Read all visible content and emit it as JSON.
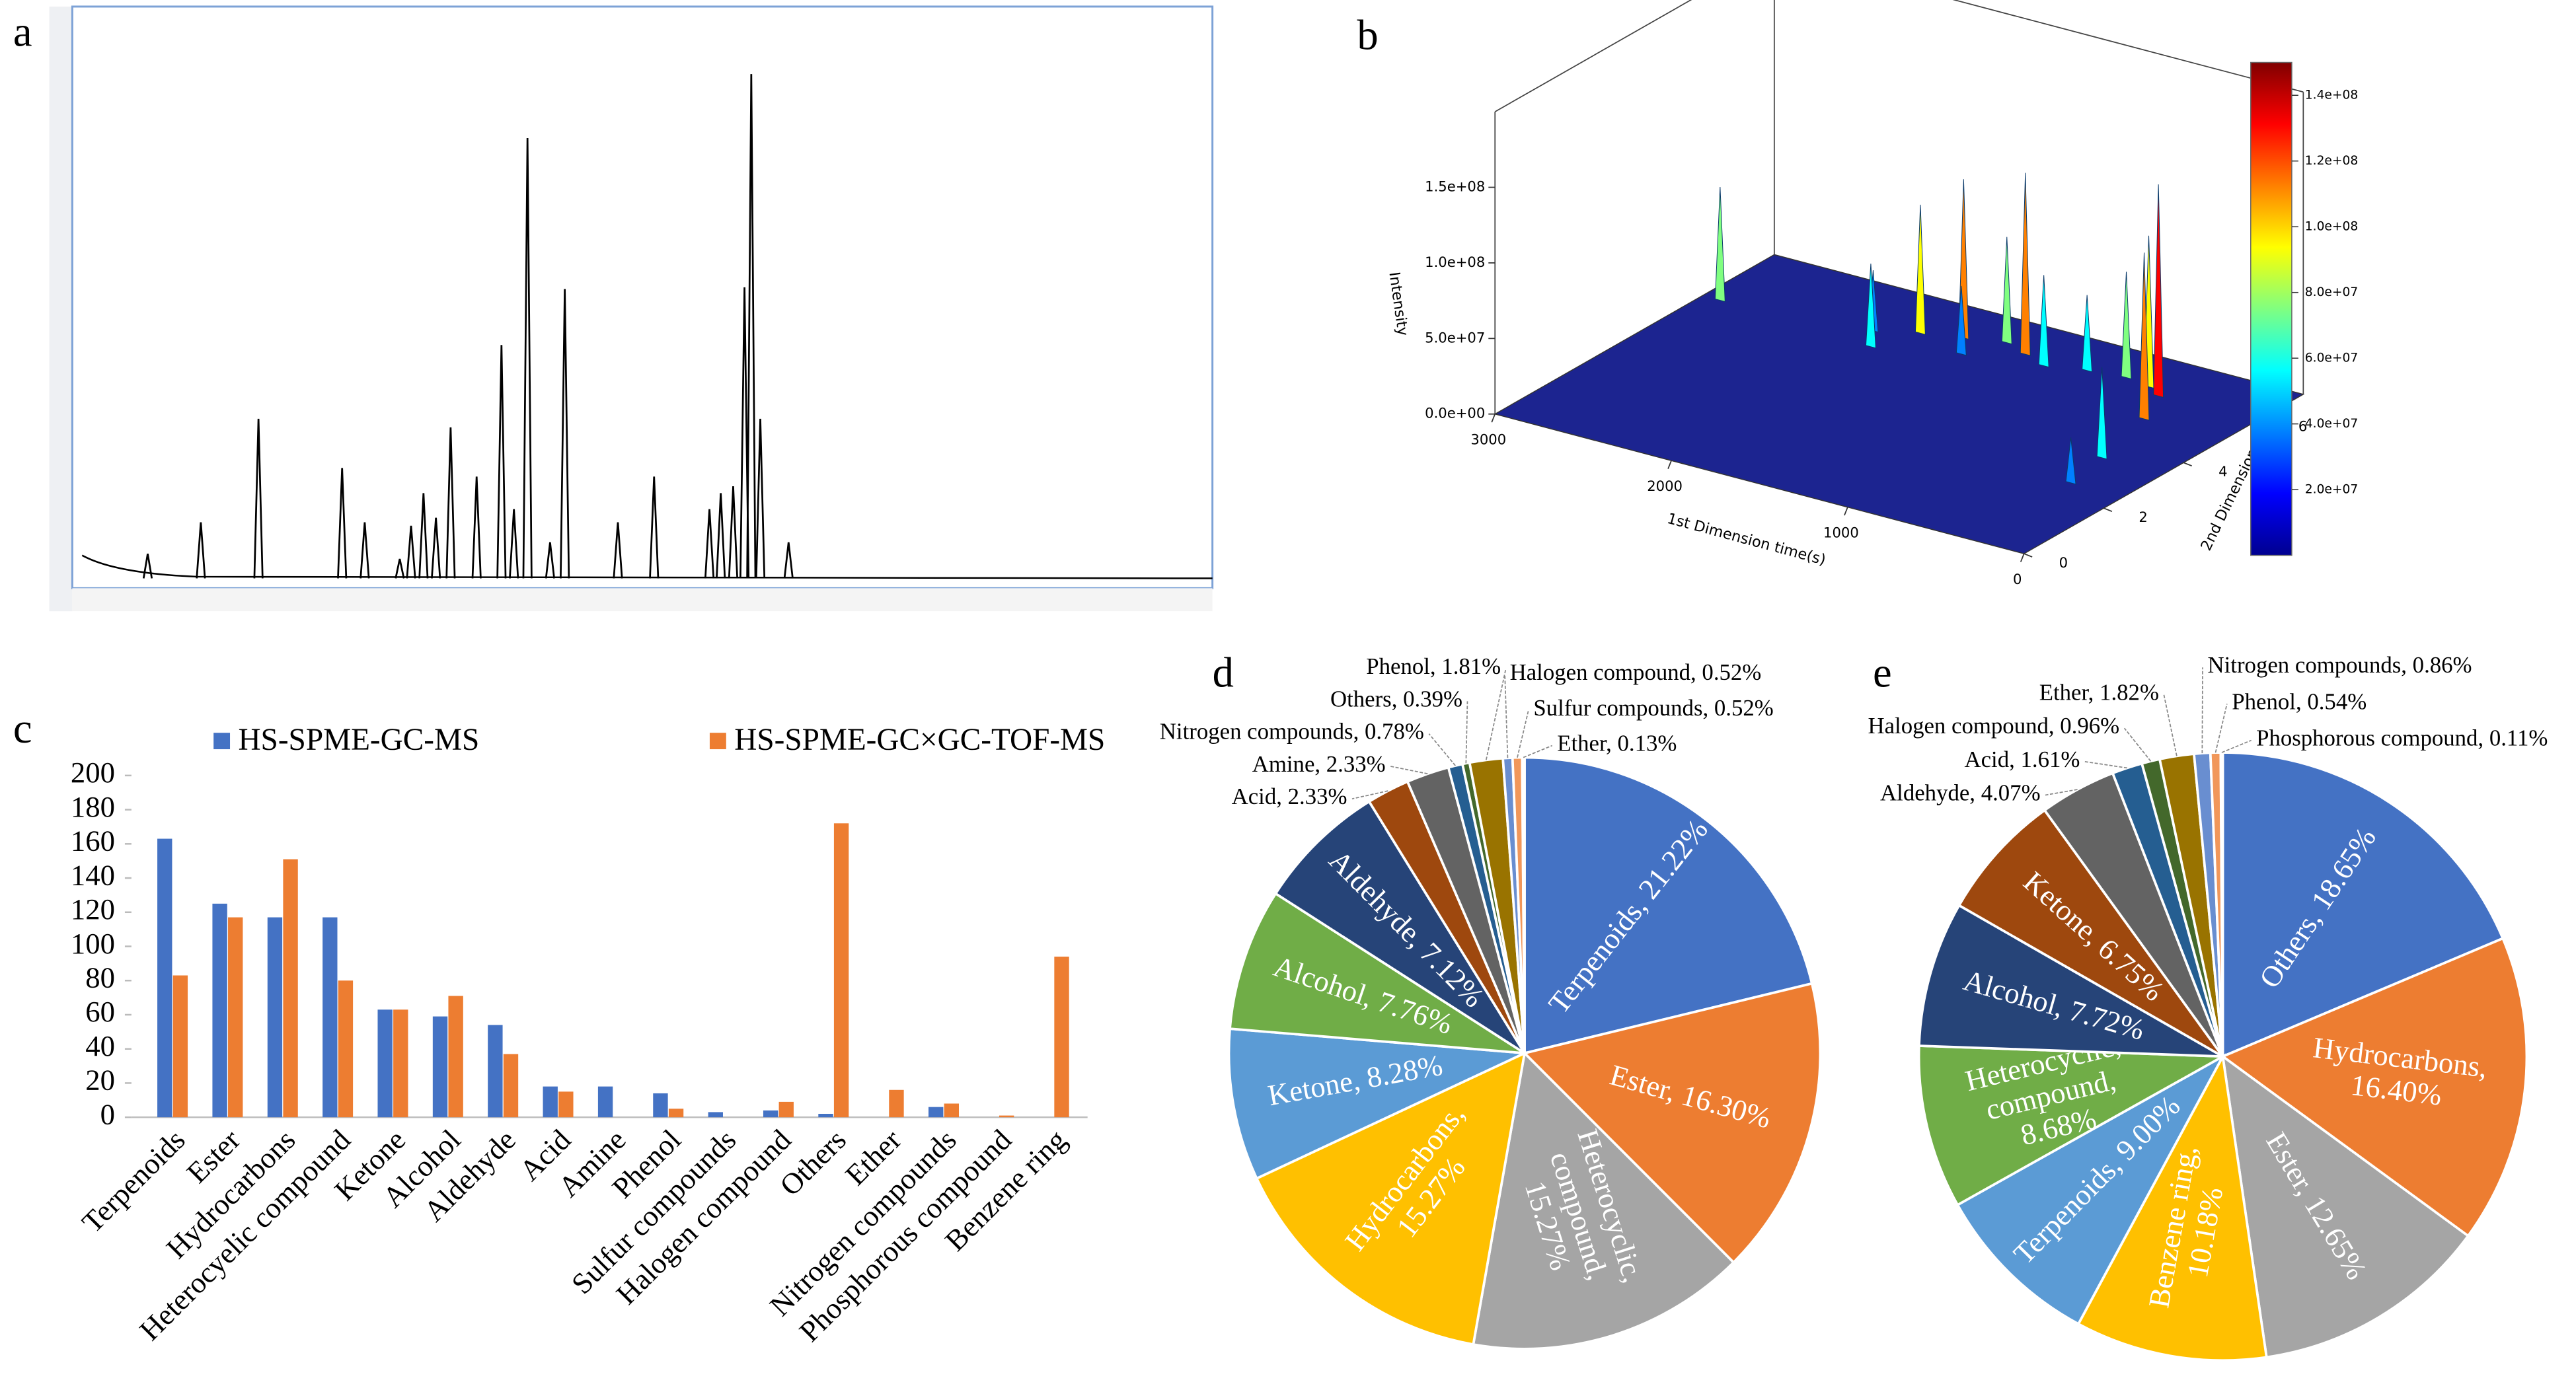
{
  "chart_data": [
    {
      "type": "chromatogram",
      "panel_label": "a",
      "xlim": [
        0,
        100
      ],
      "ylim": [
        0,
        100
      ],
      "color": "#000000",
      "x": [
        5.8,
        10.5,
        15.6,
        23.0,
        25.0,
        28.1,
        29.1,
        30.2,
        31.3,
        32.6,
        34.9,
        37.1,
        38.2,
        39.4,
        41.4,
        42.7,
        47.4,
        50.6,
        55.5,
        56.5,
        57.6,
        58.6,
        59.2,
        60.0,
        62.5
      ],
      "values": [
        4.3,
        9.8,
        27.9,
        19.3,
        9.8,
        3.4,
        9.2,
        14.9,
        10.6,
        26.4,
        17.8,
        40.8,
        12.1,
        77.0,
        6.3,
        50.6,
        9.8,
        17.8,
        12.1,
        14.9,
        16.1,
        50.9,
        88.2,
        27.9,
        6.3
      ]
    },
    {
      "type": "surface3d",
      "panel_label": "b",
      "zlabel": "Intensity",
      "xlabel": "1st Dimension time(s)",
      "ylabel": "2nd Dimension time(s)",
      "xlim": [
        0,
        3000
      ],
      "xticks": [
        0,
        1000,
        2000,
        3000
      ],
      "ylim": [
        0,
        7
      ],
      "yticks": [
        0,
        2,
        4,
        6
      ],
      "zlim": [
        0,
        200000000
      ],
      "zticks": [
        {
          "value": 0,
          "label": "0.0e+00"
        },
        {
          "value": 50000000,
          "label": "5.0e+07"
        },
        {
          "value": 100000000,
          "label": "1.0e+08"
        },
        {
          "value": 150000000,
          "label": "1.5e+08"
        }
      ],
      "x": [
        2900,
        2100,
        2000,
        1900,
        1700,
        1600,
        1500,
        1350,
        1200,
        1000,
        800,
        650,
        550,
        450,
        350,
        300
      ],
      "y": [
        5.2,
        5.5,
        5.0,
        5.8,
        6.0,
        5.5,
        6.2,
        6.0,
        5.8,
        6.0,
        6.1,
        6.0,
        5.8,
        5.0,
        3.5,
        2.5
      ],
      "values": [
        75000000,
        40000000,
        55000000,
        85000000,
        105000000,
        45000000,
        70000000,
        120000000,
        60000000,
        50000000,
        70000000,
        100000000,
        140000000,
        110000000,
        60000000,
        30000000
      ],
      "floor_color": "#1c2490",
      "colorbar": {
        "lim": [
          0,
          150000000
        ],
        "colors": [
          "#00008f",
          "#0000ff",
          "#0080ff",
          "#00ffff",
          "#80ff80",
          "#ffff00",
          "#ff8000",
          "#ff0000",
          "#800000"
        ],
        "ticks": [
          {
            "value": 20000000,
            "label": "2.0e+07"
          },
          {
            "value": 40000000,
            "label": "4.0e+07"
          },
          {
            "value": 60000000,
            "label": "6.0e+07"
          },
          {
            "value": 80000000,
            "label": "8.0e+07"
          },
          {
            "value": 100000000,
            "label": "1.0e+08"
          },
          {
            "value": 120000000,
            "label": "1.2e+08"
          },
          {
            "value": 140000000,
            "label": "1.4e+08"
          }
        ]
      }
    },
    {
      "type": "bar",
      "panel_label": "c",
      "ylim": [
        0,
        200
      ],
      "yticks": [
        0,
        20,
        40,
        60,
        80,
        100,
        120,
        140,
        160,
        180,
        200
      ],
      "categories": [
        "Terpenoids",
        "Ester",
        "Hydrocarbons",
        "Heterocyelic compound",
        "Ketone",
        "Alcohol",
        "Aldehyde",
        "Acid",
        "Amine",
        "Phenol",
        "Sulfur compounds",
        "Halogen compound",
        "Others",
        "Ether",
        "Nitrogen compounds",
        "Phosphorous compound",
        "Benzene ring"
      ],
      "series": [
        {
          "name": "HS-SPME-GC-MS",
          "color": "#4472c4",
          "values": [
            163,
            125,
            117,
            117,
            63,
            59,
            54,
            18,
            18,
            14,
            3,
            4,
            2,
            0,
            6,
            0,
            0
          ]
        },
        {
          "name": "HS-SPME-GC×GC-TOF-MS",
          "color": "#ed7d31",
          "values": [
            83,
            117,
            151,
            80,
            63,
            71,
            37,
            15,
            0,
            5,
            0,
            9,
            172,
            16,
            8,
            1,
            94
          ]
        }
      ]
    },
    {
      "type": "pie",
      "panel_label": "d",
      "labels": [
        [
          "Terpenoids, 21.22%"
        ],
        [
          "Ester, 16.30%"
        ],
        [
          "Heterocyclic,",
          "compound,",
          "15.27%"
        ],
        [
          "Hydrocarbons,",
          "15.27%"
        ],
        [
          "Ketone, 8.28%"
        ],
        [
          "Alcohol, 7.76%"
        ],
        [
          "Aldehyde, 7.12%"
        ],
        [
          "Acid, 2.33%"
        ],
        [
          "Amine, 2.33%"
        ],
        [
          "Nitrogen compounds, 0.78%"
        ],
        [
          "Others, 0.39%"
        ],
        [
          "Phenol, 1.81%"
        ],
        [
          "Halogen compound, 0.52%"
        ],
        [
          "Sulfur compounds, 0.52%"
        ],
        [
          "Ether, 0.13%"
        ]
      ],
      "values": [
        21.22,
        16.3,
        15.27,
        15.27,
        8.28,
        7.76,
        7.12,
        2.33,
        2.33,
        0.78,
        0.39,
        1.81,
        0.52,
        0.52,
        0.13
      ],
      "colors": [
        "#4472c4",
        "#ed7d31",
        "#a5a5a5",
        "#ffc000",
        "#5b9bd5",
        "#70ad47",
        "#264478",
        "#9e480e",
        "#636363",
        "#255e91",
        "#43682b",
        "#997300",
        "#698ed0",
        "#f1975a",
        "#b7b7b7"
      ]
    },
    {
      "type": "pie",
      "panel_label": "e",
      "labels": [
        [
          "Others, 18.65%"
        ],
        [
          "Hydrocarbons,",
          "16.40%"
        ],
        [
          "Ester, 12.65%"
        ],
        [
          "Benzene ring,",
          "10.18%"
        ],
        [
          "Terpenoids, 9.00%"
        ],
        [
          "Heterocyclic,",
          "compound,",
          "8.68%"
        ],
        [
          "Alcohol, 7.72%"
        ],
        [
          "Ketone, 6.75%"
        ],
        [
          "Aldehyde, 4.07%"
        ],
        [
          "Acid, 1.61%"
        ],
        [
          "Halogen compound, 0.96%"
        ],
        [
          "Ether, 1.82%"
        ],
        [
          "Nitrogen compounds, 0.86%"
        ],
        [
          "Phenol, 0.54%"
        ],
        [
          "Phosphorous compound, 0.11%"
        ]
      ],
      "values": [
        18.65,
        16.4,
        12.65,
        10.18,
        9.0,
        8.68,
        7.72,
        6.75,
        4.07,
        1.61,
        0.96,
        1.82,
        0.86,
        0.54,
        0.11
      ],
      "colors": [
        "#4472c4",
        "#ed7d31",
        "#a5a5a5",
        "#ffc000",
        "#5b9bd5",
        "#70ad47",
        "#264478",
        "#9e480e",
        "#636363",
        "#255e91",
        "#43682b",
        "#997300",
        "#698ed0",
        "#f1975a",
        "#b7b7b7"
      ]
    }
  ]
}
